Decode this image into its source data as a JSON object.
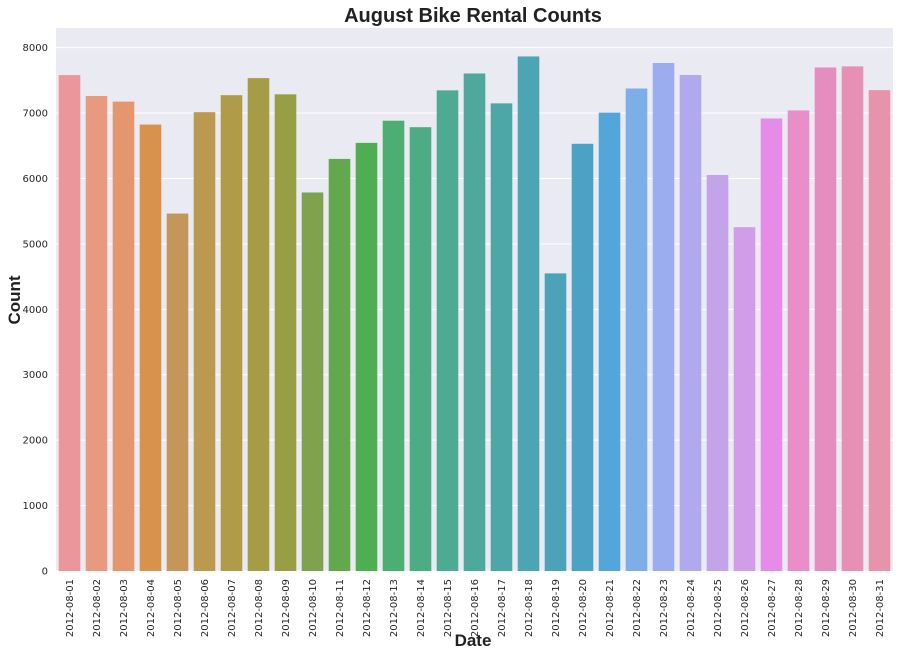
{
  "chart_data": {
    "type": "bar",
    "title": "August Bike Rental Counts",
    "xlabel": "Date",
    "ylabel": "Count",
    "ylim": [
      0,
      8300
    ],
    "yticks": [
      0,
      1000,
      2000,
      3000,
      4000,
      5000,
      6000,
      7000,
      8000
    ],
    "grid": true,
    "legend": "none",
    "background_color": "#EAEAF2",
    "grid_color": "#FFFFFF",
    "categories": [
      "2012-08-01",
      "2012-08-02",
      "2012-08-03",
      "2012-08-04",
      "2012-08-05",
      "2012-08-06",
      "2012-08-07",
      "2012-08-08",
      "2012-08-09",
      "2012-08-10",
      "2012-08-11",
      "2012-08-12",
      "2012-08-13",
      "2012-08-14",
      "2012-08-15",
      "2012-08-16",
      "2012-08-17",
      "2012-08-18",
      "2012-08-19",
      "2012-08-20",
      "2012-08-21",
      "2012-08-22",
      "2012-08-23",
      "2012-08-24",
      "2012-08-25",
      "2012-08-26",
      "2012-08-27",
      "2012-08-28",
      "2012-08-29",
      "2012-08-30",
      "2012-08-31"
    ],
    "values": [
      7580,
      7261,
      7175,
      6824,
      5464,
      7013,
      7273,
      7534,
      7286,
      5786,
      6299,
      6544,
      6883,
      6784,
      7347,
      7605,
      7148,
      7865,
      4549,
      6530,
      7006,
      7375,
      7765,
      7582,
      6053,
      5255,
      6917,
      7040,
      7697,
      7713,
      7350
    ],
    "colors": [
      "#EA969A",
      "#E89A80",
      "#E4966E",
      "#D8924C",
      "#C4965A",
      "#BB9A50",
      "#B09B48",
      "#A49D45",
      "#979E43",
      "#7FA24F",
      "#63A84E",
      "#4DAE52",
      "#4CAE72",
      "#4CAC84",
      "#4EAA92",
      "#4EA99C",
      "#4CA7A6",
      "#4CA5B2",
      "#4CA2B8",
      "#4BA2C5",
      "#52A6D9",
      "#7DAEE8",
      "#9BADEE",
      "#B1A9EE",
      "#C3A3EA",
      "#D19DE6",
      "#E48CE8",
      "#E98EC8",
      "#E68DBF",
      "#E690B4",
      "#E893AC"
    ]
  }
}
